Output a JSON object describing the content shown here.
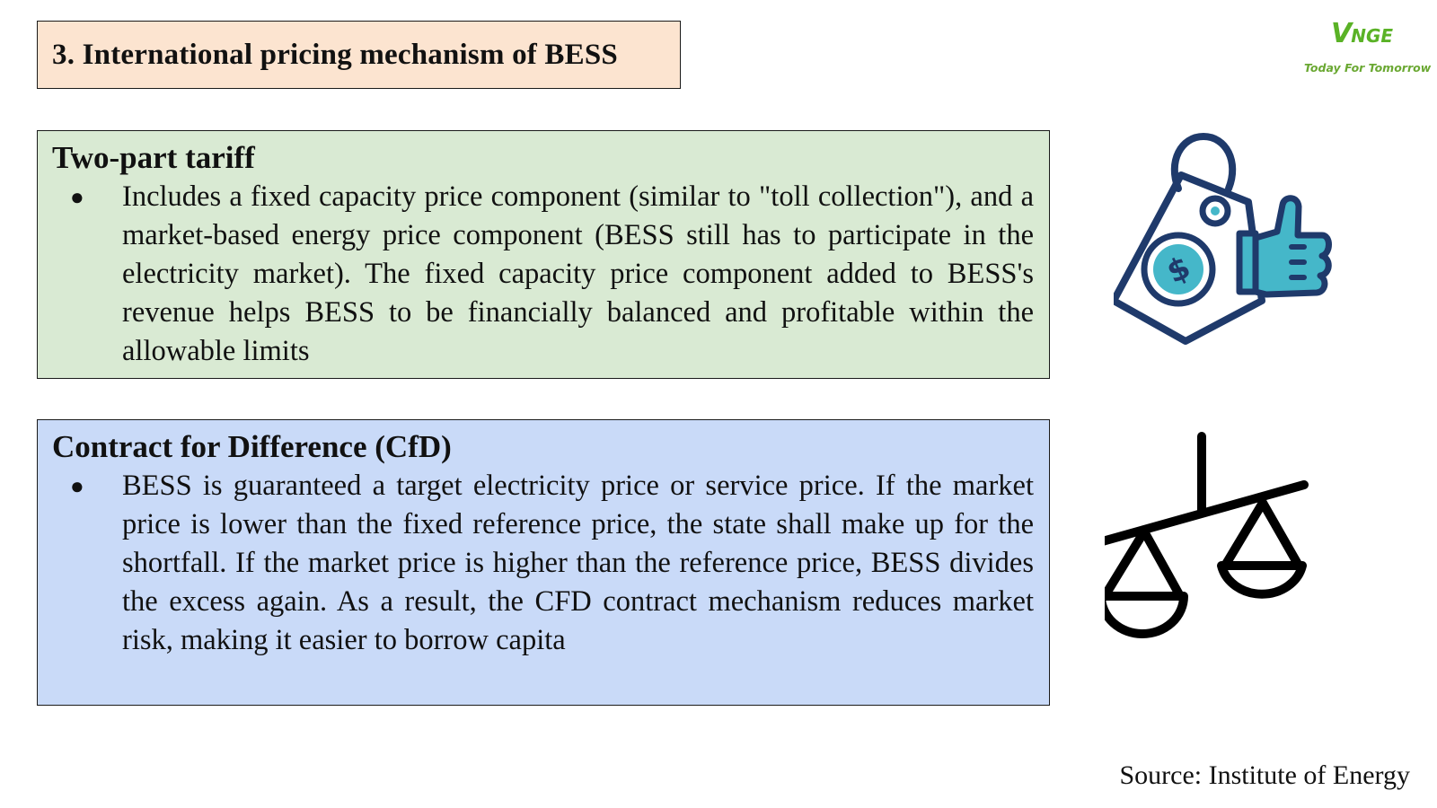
{
  "title": "3. International pricing mechanism of BESS",
  "logo": {
    "mark": "V",
    "mark_small": "NGE",
    "tagline": "Today For Tomorrow"
  },
  "sections": [
    {
      "heading": "Two-part tariff",
      "bullet": "●",
      "text": "Includes a fixed capacity price component (similar to \"toll collection\"), and a market-based energy price component (BESS still has to participate in the electricity market). The fixed capacity price component added to BESS's revenue helps BESS to be financially balanced and profitable within the allowable limits",
      "background": "#d9ead3"
    },
    {
      "heading": "Contract for Difference (CfD)",
      "bullet": "●",
      "text": "BESS is guaranteed a target electricity price or service price. If the market price is lower than the fixed reference price, the state shall make up for the shortfall. If the market price is higher than the reference price, BESS divides the excess again. As a result, the CFD contract mechanism reduces market risk, making it easier to borrow capita",
      "background": "#c9daf8"
    }
  ],
  "icons": [
    "price-tag-thumbs-up-icon",
    "balance-scale-icon"
  ],
  "colors": {
    "title_bg": "#fce4d0",
    "logo_green": "#5ab226",
    "icon_navy": "#1f3a6b",
    "icon_teal": "#45b7c9"
  },
  "source": "Source: Institute of Energy"
}
